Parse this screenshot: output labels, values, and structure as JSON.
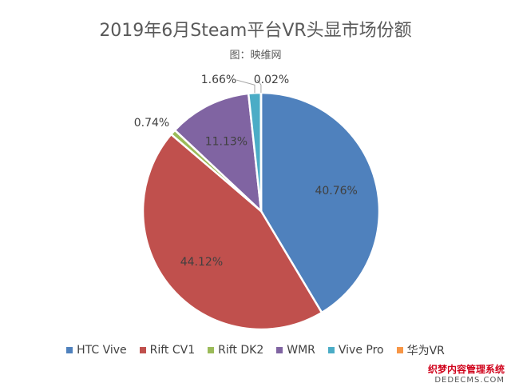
{
  "chart_data": {
    "type": "pie",
    "title": "2019年6月Steam平台VR头显市场份额",
    "subtitle": "图：映维网",
    "slices": [
      {
        "name": "HTC Vive",
        "value": 40.76,
        "label": "40.76%",
        "color": "#4F81BD"
      },
      {
        "name": "Rift CV1",
        "value": 44.12,
        "label": "44.12%",
        "color": "#C0504D"
      },
      {
        "name": "Rift DK2",
        "value": 0.74,
        "label": "0.74%",
        "color": "#9BBB59"
      },
      {
        "name": "WMR",
        "value": 11.13,
        "label": "11.13%",
        "color": "#8064A2"
      },
      {
        "name": "Vive Pro",
        "value": 1.66,
        "label": "1.66%",
        "color": "#4BACC6"
      },
      {
        "name": "华为VR",
        "value": 0.02,
        "label": "0.02%",
        "color": "#F79646"
      }
    ],
    "legend_position": "bottom"
  },
  "watermark": {
    "line1": "织梦内容管理系统",
    "line2": "DEDECMS.COM"
  }
}
